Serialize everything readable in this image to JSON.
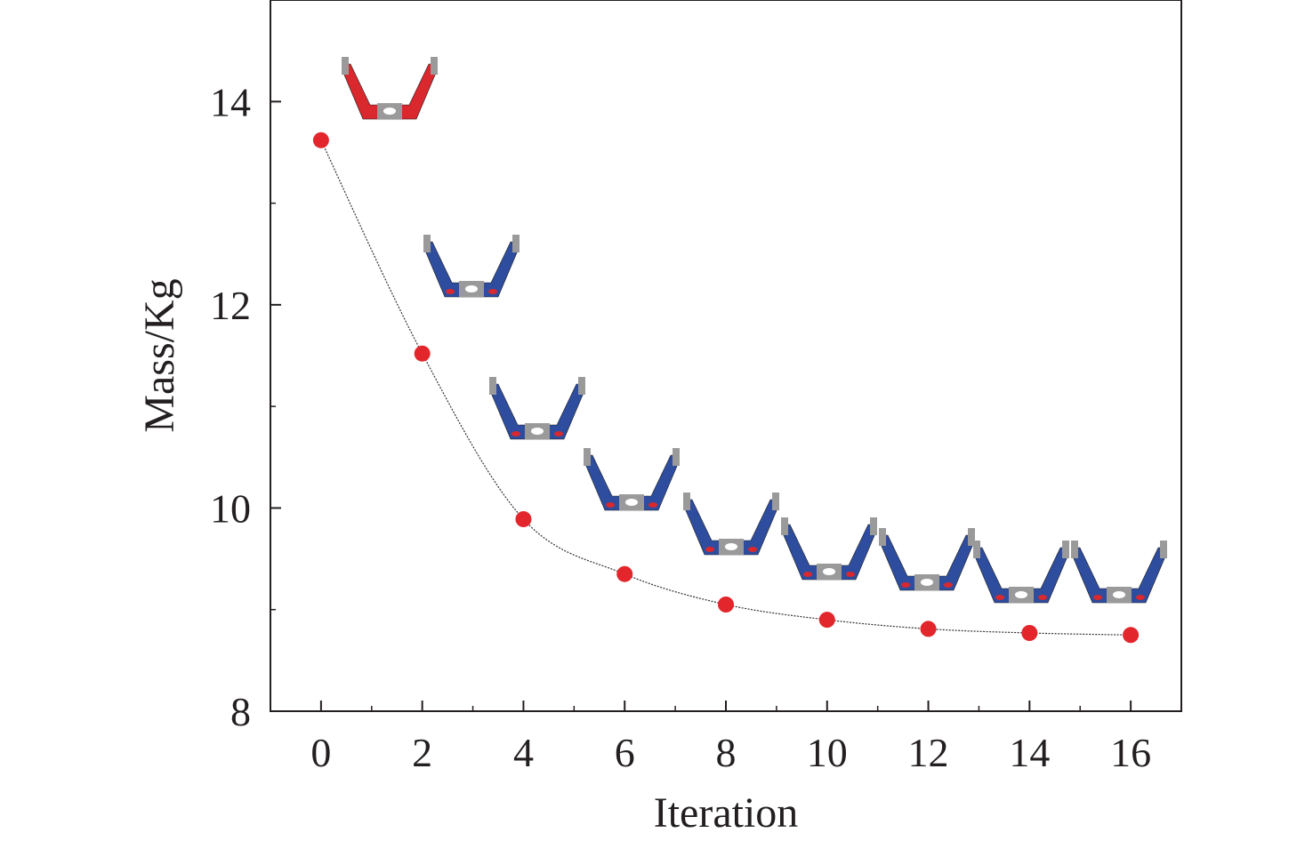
{
  "chart_data": {
    "type": "scatter",
    "title": "",
    "xlabel": "Iteration",
    "ylabel": "Mass/Kg",
    "xlim": [
      -1,
      17
    ],
    "ylim": [
      8,
      15
    ],
    "x_ticks": [
      0,
      2,
      4,
      6,
      8,
      10,
      12,
      14,
      16
    ],
    "y_ticks": [
      8,
      10,
      12,
      14
    ],
    "grid": false,
    "series": [
      {
        "x": [
          0,
          2,
          4,
          6,
          8,
          10,
          12,
          14,
          16
        ],
        "values": [
          13.62,
          11.52,
          9.89,
          9.35,
          9.05,
          8.9,
          8.81,
          8.77,
          8.75
        ],
        "marker_color": "#e3262b",
        "line_color": "#333333"
      }
    ],
    "insets": {
      "description_icon": "bracket-shape-icon",
      "colors": [
        "#d9282e",
        "#2e4d9e",
        "#9a9a9a"
      ]
    }
  }
}
